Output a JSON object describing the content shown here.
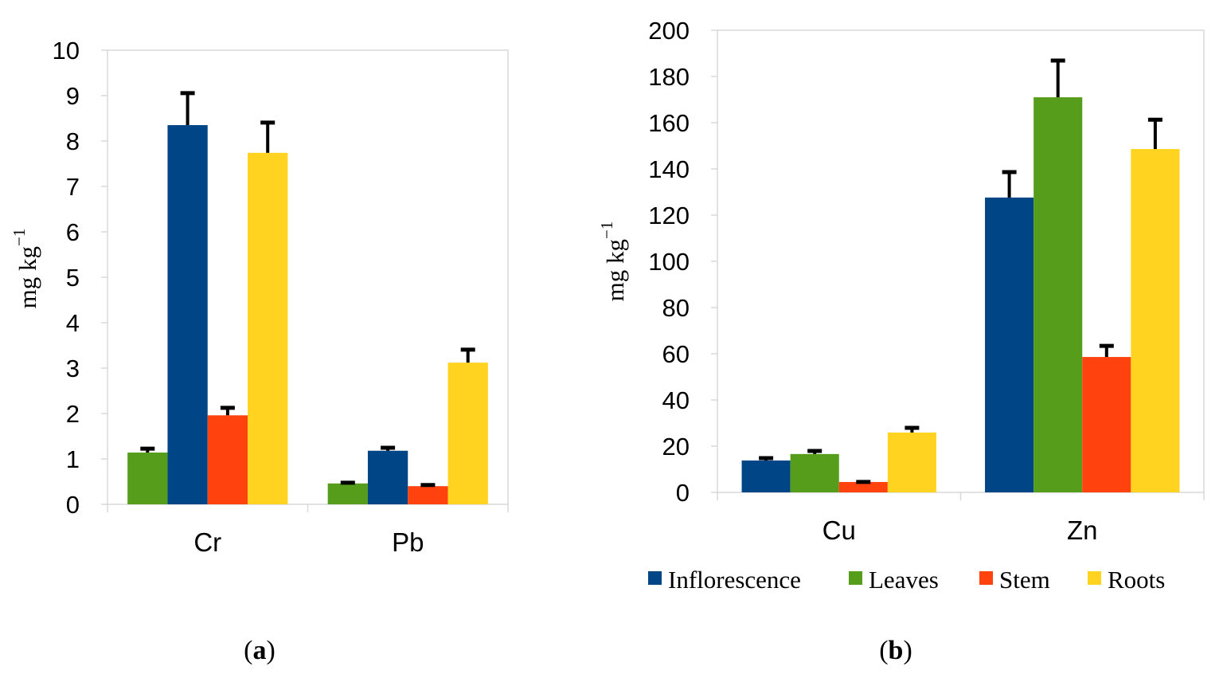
{
  "colors": {
    "Inflorescence": "#004586",
    "Leaves": "#579d1c",
    "Stem": "#ff420e",
    "Roots": "#ffd320",
    "axis": "#d9d9d9",
    "error": "#000000"
  },
  "legend": [
    "Inflorescence",
    "Leaves",
    "Stem",
    "Roots"
  ],
  "chart_data": [
    {
      "type": "bar",
      "caption_label": "a",
      "ylabel": "mg kg",
      "ylabel_sup": "−1",
      "ylim": [
        0,
        10
      ],
      "yticks": [
        0,
        1,
        2,
        3,
        4,
        5,
        6,
        7,
        8,
        9,
        10
      ],
      "categories": [
        "Cr",
        "Pb"
      ],
      "series": [
        {
          "name": "Leaves",
          "values": [
            1.14,
            0.46
          ],
          "errors": [
            0.12,
            0.05
          ]
        },
        {
          "name": "Inflorescence",
          "values": [
            8.35,
            1.18
          ],
          "errors": [
            0.74,
            0.1
          ]
        },
        {
          "name": "Stem",
          "values": [
            1.96,
            0.4
          ],
          "errors": [
            0.2,
            0.06
          ]
        },
        {
          "name": "Roots",
          "values": [
            7.74,
            3.12
          ],
          "errors": [
            0.7,
            0.32
          ]
        }
      ]
    },
    {
      "type": "bar",
      "caption_label": "b",
      "ylabel": "mg kg",
      "ylabel_sup": "−1",
      "ylim": [
        0,
        200
      ],
      "yticks": [
        0,
        20,
        40,
        60,
        80,
        100,
        120,
        140,
        160,
        180,
        200
      ],
      "categories": [
        "Cu",
        "Zn"
      ],
      "series": [
        {
          "name": "Inflorescence",
          "values": [
            13.8,
            127.6
          ],
          "errors": [
            1.7,
            11.7
          ]
        },
        {
          "name": "Leaves",
          "values": [
            16.6,
            171
          ],
          "errors": [
            2,
            16.6
          ]
        },
        {
          "name": "Stem",
          "values": [
            4.5,
            58.6
          ],
          "errors": [
            0.7,
            5.5
          ]
        },
        {
          "name": "Roots",
          "values": [
            25.9,
            148.6
          ],
          "errors": [
            2.7,
            13.4
          ]
        }
      ],
      "legend_position": "bottom"
    }
  ]
}
